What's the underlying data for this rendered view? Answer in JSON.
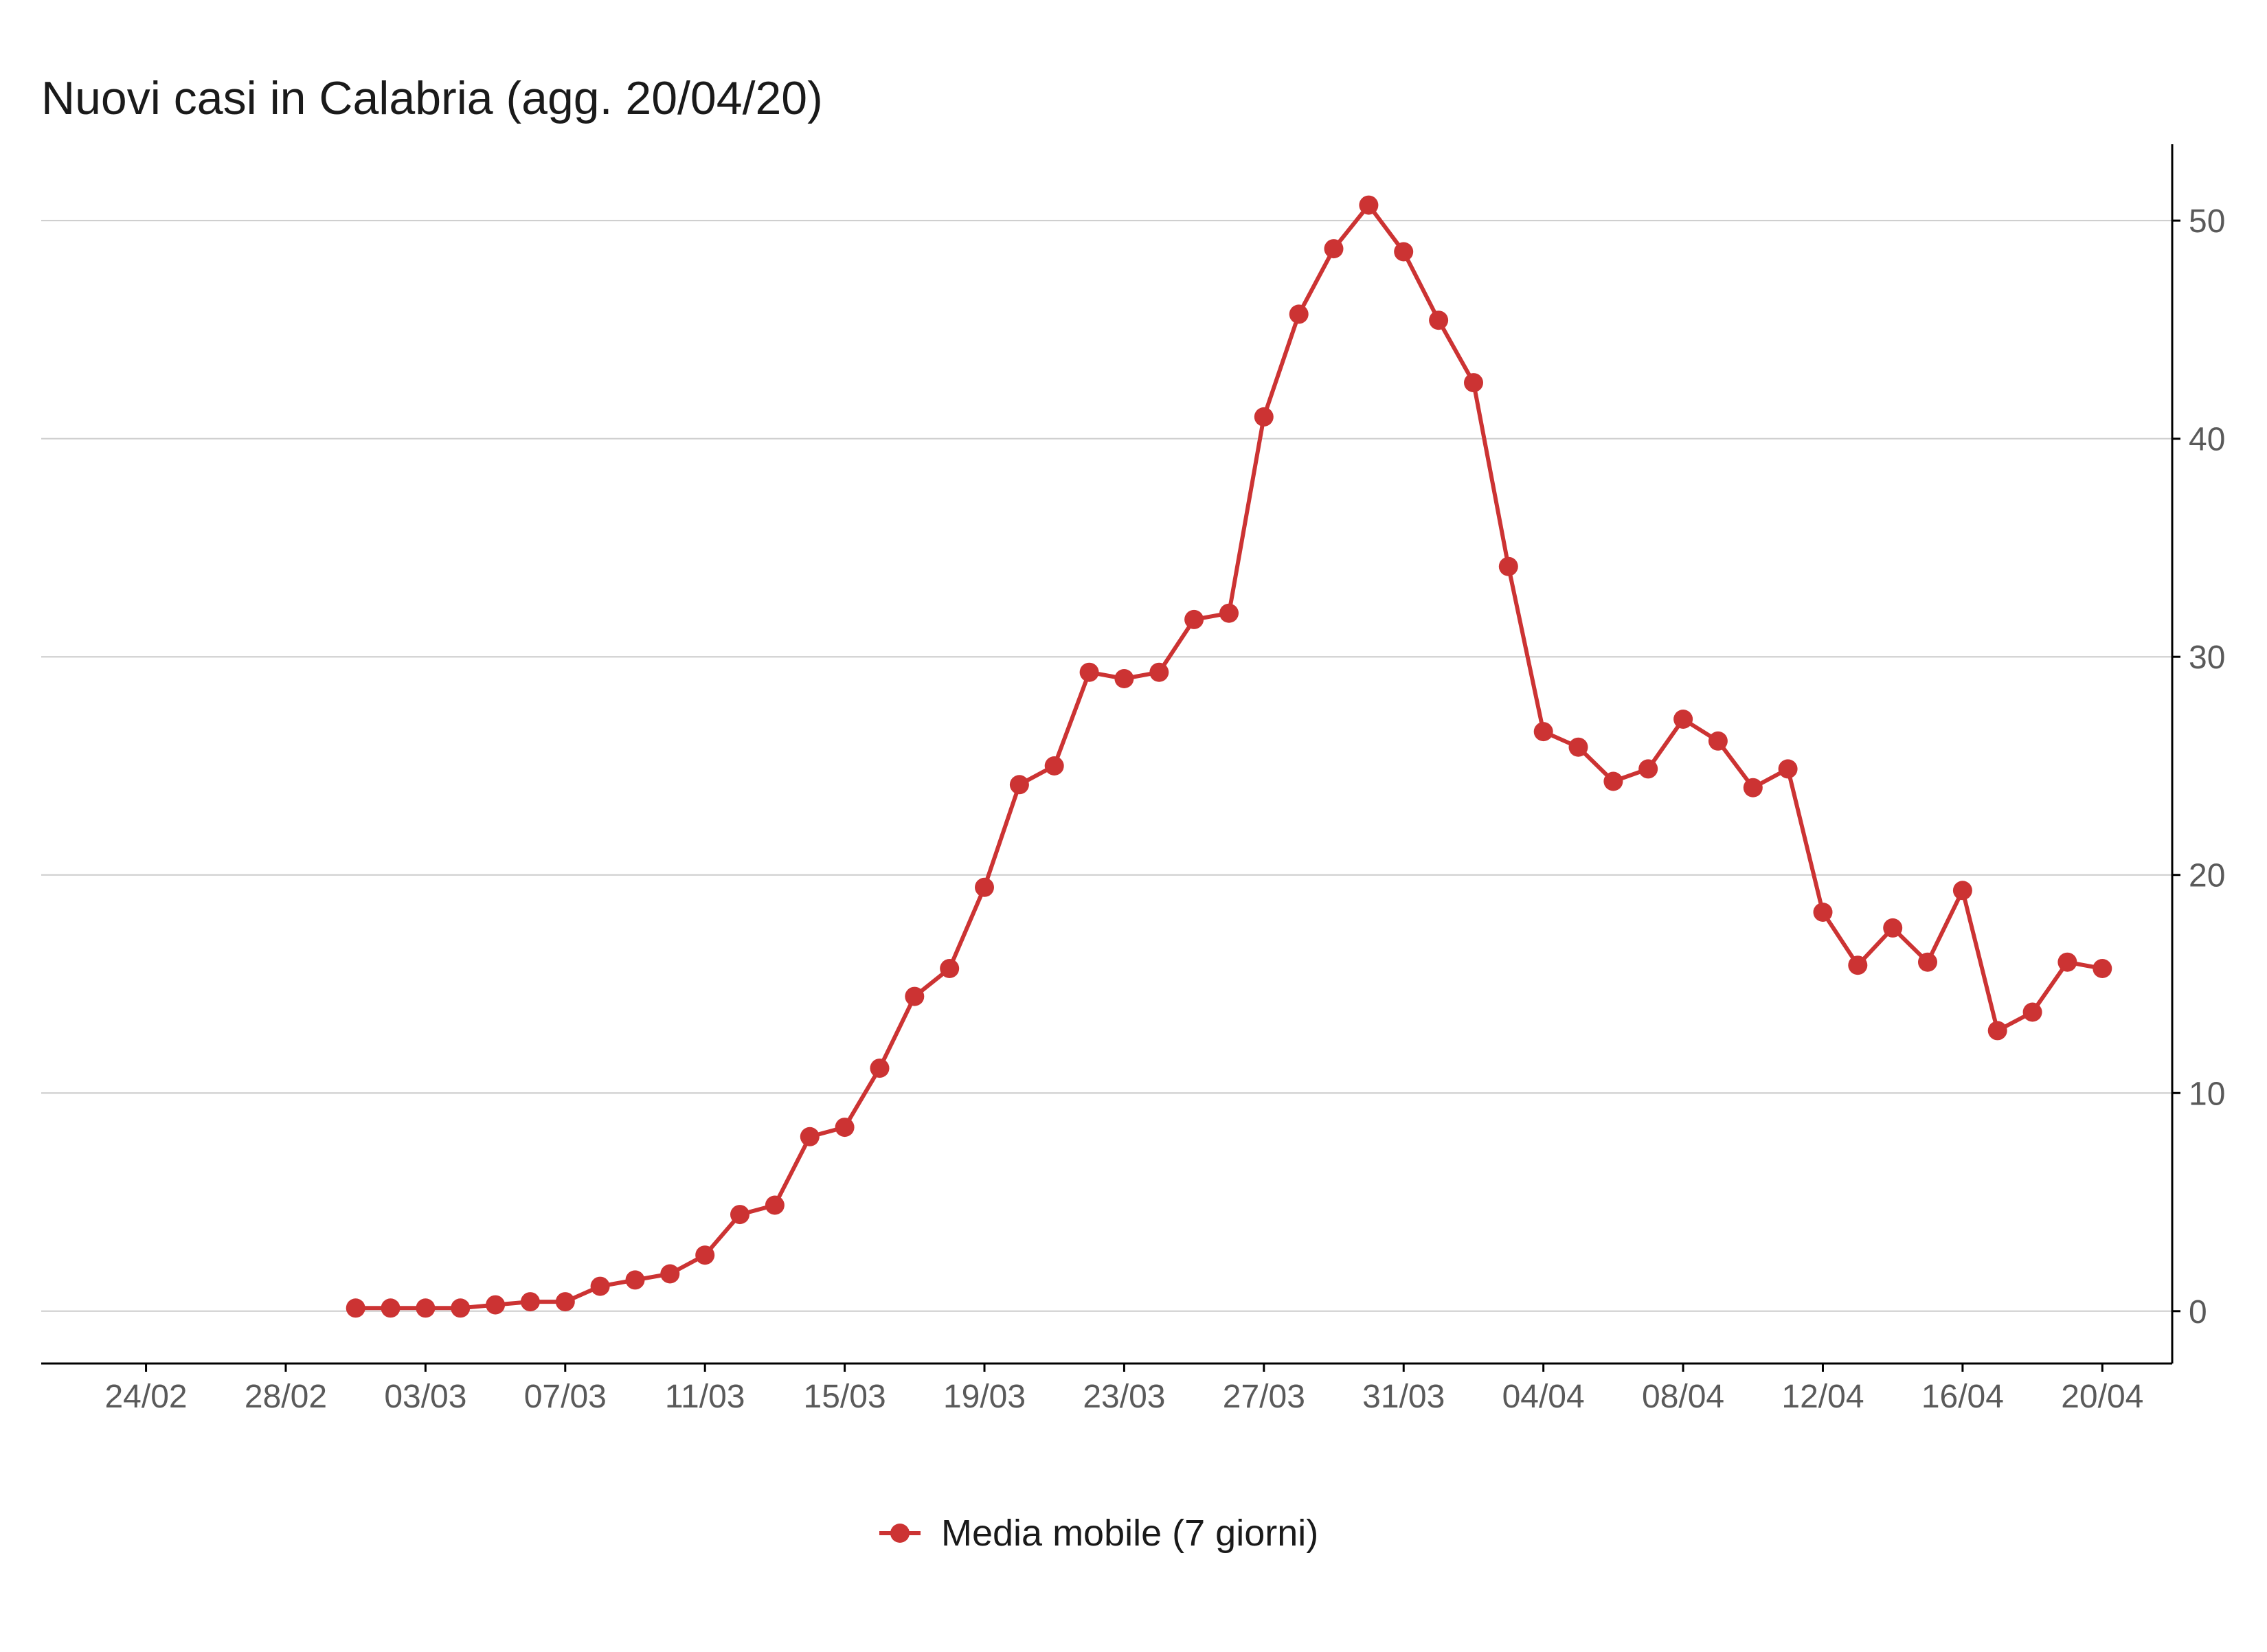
{
  "chart_data": {
    "type": "line",
    "title": "Nuovi casi in Calabria (agg. 20/04/20)",
    "xlabel": "",
    "ylabel": "",
    "x_tick_labels": [
      "24/02",
      "28/02",
      "03/03",
      "07/03",
      "11/03",
      "15/03",
      "19/03",
      "23/03",
      "27/03",
      "31/03",
      "04/04",
      "08/04",
      "12/04",
      "16/04",
      "20/04"
    ],
    "x_range": [
      "2020-02-21",
      "2020-04-22"
    ],
    "y_ticks": [
      0,
      10,
      20,
      30,
      40,
      50
    ],
    "ylim": [
      -2.4,
      53.5
    ],
    "y_axis_position": "right",
    "grid": "horizontal",
    "legend_position": "bottom",
    "series": [
      {
        "name": "Media mobile (7 giorni)",
        "color": "#cc3333",
        "marker": "circle",
        "x": [
          "2020-03-01",
          "2020-03-02",
          "2020-03-03",
          "2020-03-04",
          "2020-03-05",
          "2020-03-06",
          "2020-03-07",
          "2020-03-08",
          "2020-03-09",
          "2020-03-10",
          "2020-03-11",
          "2020-03-12",
          "2020-03-13",
          "2020-03-14",
          "2020-03-15",
          "2020-03-16",
          "2020-03-17",
          "2020-03-18",
          "2020-03-19",
          "2020-03-20",
          "2020-03-21",
          "2020-03-22",
          "2020-03-23",
          "2020-03-24",
          "2020-03-25",
          "2020-03-26",
          "2020-03-27",
          "2020-03-28",
          "2020-03-29",
          "2020-03-30",
          "2020-03-31",
          "2020-04-01",
          "2020-04-02",
          "2020-04-03",
          "2020-04-04",
          "2020-04-05",
          "2020-04-06",
          "2020-04-07",
          "2020-04-08",
          "2020-04-09",
          "2020-04-10",
          "2020-04-11",
          "2020-04-12",
          "2020-04-13",
          "2020-04-14",
          "2020-04-15",
          "2020-04-16",
          "2020-04-17",
          "2020-04-18",
          "2020-04-19",
          "2020-04-20"
        ],
        "values": [
          0.14,
          0.14,
          0.14,
          0.14,
          0.29,
          0.43,
          0.43,
          1.14,
          1.43,
          1.71,
          2.57,
          4.43,
          4.86,
          8.0,
          8.43,
          11.14,
          14.43,
          15.71,
          19.43,
          24.14,
          25.0,
          29.29,
          29.0,
          29.29,
          31.71,
          32.0,
          41.0,
          45.71,
          48.71,
          50.71,
          48.57,
          45.43,
          42.57,
          34.14,
          26.57,
          25.86,
          24.29,
          24.86,
          27.14,
          26.14,
          24.0,
          24.86,
          18.29,
          15.86,
          17.57,
          16.0,
          19.29,
          12.86,
          13.71,
          16.0,
          15.71
        ]
      }
    ]
  }
}
